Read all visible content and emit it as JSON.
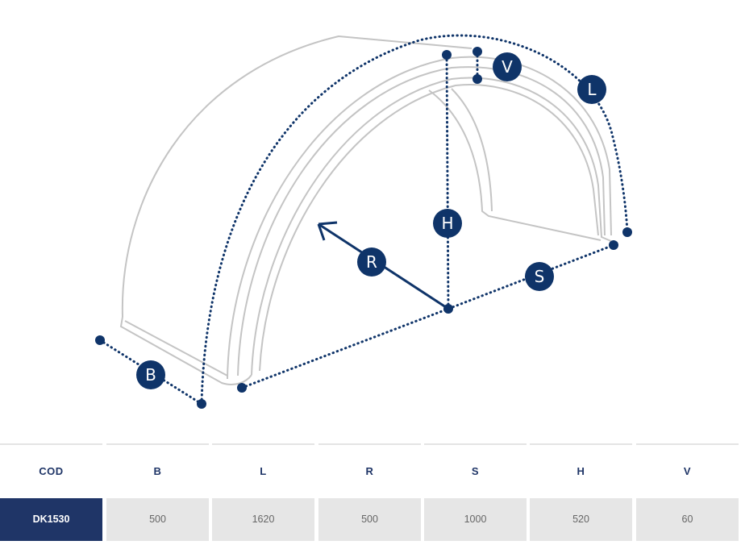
{
  "diagram": {
    "labels": {
      "B": "B",
      "L": "L",
      "R": "R",
      "S": "S",
      "H": "H",
      "V": "V"
    },
    "colors": {
      "accent": "#0f3469",
      "outline": "#c4c4c4"
    }
  },
  "table": {
    "headers": [
      "COD",
      "B",
      "L",
      "R",
      "S",
      "H",
      "V"
    ],
    "row": [
      "DK1530",
      "500",
      "1620",
      "500",
      "1000",
      "520",
      "60"
    ]
  }
}
